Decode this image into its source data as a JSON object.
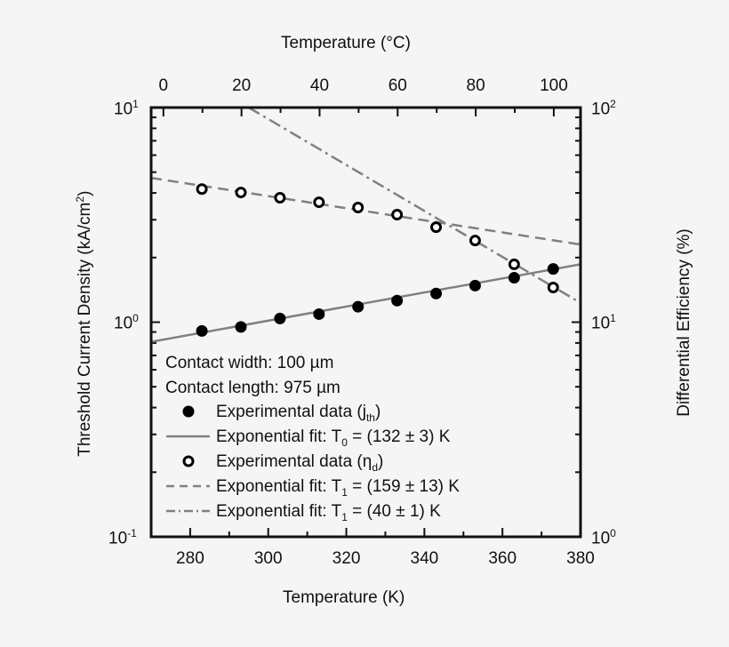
{
  "chart_data": {
    "type": "scatter",
    "title": "",
    "xlabel": "Temperature (K)",
    "x2label": "Temperature (°C)",
    "ylabel": "Threshold Current Density (kA/cm²)",
    "y2label": "Differential Efficiency (%)",
    "xlim": [
      270,
      380
    ],
    "x2lim": [
      -3.15,
      106.85
    ],
    "ylim": [
      0.1,
      10
    ],
    "y2lim": [
      1,
      100
    ],
    "yscale": "log",
    "y2scale": "log",
    "x_ticks": [
      "280",
      "300",
      "320",
      "340",
      "360",
      "380"
    ],
    "x2_ticks": [
      "0",
      "20",
      "40",
      "60",
      "80",
      "100"
    ],
    "y_ticks": [
      "10^-1",
      "10^0",
      "10^1"
    ],
    "y2_ticks": [
      "10^0",
      "10^1",
      "10^2"
    ],
    "grid": false,
    "annotations": [
      "Contact width: 100 µm",
      "Contact length: 975 µm"
    ],
    "series": [
      {
        "name": "Experimental data (j_th)",
        "axis": "left",
        "marker": "filled-circle",
        "x": [
          283,
          293,
          303,
          313,
          323,
          333,
          343,
          353,
          363,
          373
        ],
        "values": [
          0.91,
          0.95,
          1.04,
          1.09,
          1.18,
          1.26,
          1.36,
          1.48,
          1.61,
          1.77
        ]
      },
      {
        "name": "Exponential fit: T0 = (132 ± 3) K",
        "axis": "left",
        "line": "solid",
        "x": [
          270,
          380
        ],
        "values": [
          0.81,
          1.86
        ]
      },
      {
        "name": "Experimental data (η_d)",
        "axis": "right",
        "marker": "open-circle",
        "x": [
          283,
          293,
          303,
          313,
          323,
          333,
          343,
          353,
          363,
          373
        ],
        "values": [
          41.7,
          40.2,
          38.0,
          36.2,
          34.2,
          31.7,
          27.7,
          24.0,
          18.6,
          14.5
        ]
      },
      {
        "name": "Exponential fit: T1 = (159 ± 13) K",
        "axis": "right",
        "line": "dashed",
        "x": [
          270,
          380
        ],
        "values": [
          47.0,
          23.0
        ]
      },
      {
        "name": "Exponential fit: T1 = (40 ± 1) K",
        "axis": "right",
        "line": "dash-dot",
        "x": [
          295,
          380
        ],
        "values": [
          100,
          12.3
        ]
      }
    ]
  },
  "legend": {
    "note1": "Contact width: 100 µm",
    "note2": "Contact length: 975 µm",
    "entries": [
      {
        "pre": "Experimental data (j",
        "sub": "th",
        "post": ")"
      },
      {
        "pre": "Exponential fit: T",
        "sub": "0",
        "post": " = (132 ± 3) K"
      },
      {
        "pre": "Experimental data (η",
        "sub": "d",
        "post": ")"
      },
      {
        "pre": "Exponential fit: T",
        "sub": "1",
        "post": " = (159 ± 13) K"
      },
      {
        "pre": "Exponential fit: T",
        "sub": "1",
        "post": " = (40 ± 1) K"
      }
    ]
  },
  "axes": {
    "top_title": "Temperature (°C)",
    "bottom_title": "Temperature (K)",
    "left_title_main": "Threshold Current Density (kA/cm",
    "left_title_sup": "2",
    "left_title_end": ")",
    "right_title": "Differential Efficiency (%)",
    "left_ticks": [
      {
        "base": "10",
        "exp": "1"
      },
      {
        "base": "10",
        "exp": "0"
      },
      {
        "base": "10",
        "exp": "-1"
      }
    ],
    "right_ticks": [
      {
        "base": "10",
        "exp": "2"
      },
      {
        "base": "10",
        "exp": "1"
      },
      {
        "base": "10",
        "exp": "0"
      }
    ]
  },
  "colors": {
    "axis": "#111111",
    "fit_line": "#808080",
    "marker": "#000000",
    "background": "#f5f5f5"
  }
}
